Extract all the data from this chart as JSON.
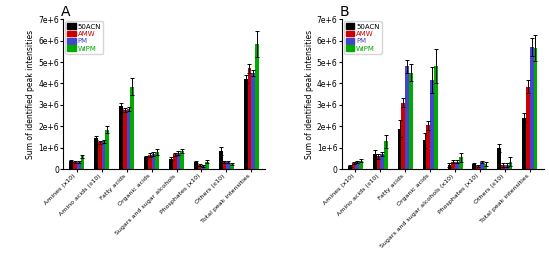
{
  "panel_A": {
    "title": "A",
    "categories": [
      "Amines (x10)",
      "Amino acids (x10)",
      "Fatty acids",
      "Organic acids",
      "Sugars and sugar alcohols",
      "Phosphates (x10)",
      "Others (x10)",
      "Total peak intensities"
    ],
    "series": {
      "50ACN": [
        400000,
        1450000,
        2950000,
        550000,
        500000,
        350000,
        850000,
        4200000
      ],
      "AMW": [
        350000,
        1250000,
        2750000,
        650000,
        700000,
        200000,
        350000,
        4700000
      ],
      "PM": [
        350000,
        1300000,
        2800000,
        700000,
        750000,
        150000,
        350000,
        4500000
      ],
      "WiPM": [
        600000,
        1850000,
        3850000,
        800000,
        850000,
        350000,
        250000,
        5850000
      ]
    },
    "errors": {
      "50ACN": [
        40000,
        100000,
        150000,
        80000,
        80000,
        50000,
        200000,
        200000
      ],
      "AMW": [
        40000,
        80000,
        100000,
        100000,
        80000,
        50000,
        50000,
        200000
      ],
      "PM": [
        40000,
        80000,
        100000,
        100000,
        80000,
        50000,
        50000,
        150000
      ],
      "WiPM": [
        80000,
        150000,
        400000,
        150000,
        100000,
        80000,
        50000,
        600000
      ]
    }
  },
  "panel_B": {
    "title": "B",
    "categories": [
      "Amines (x10)",
      "Amino acids (x10)",
      "Fatty acids",
      "Organic acids",
      "Sugars and sugar alcohols (x10)",
      "Phosphates (x10)",
      "Others (x10)",
      "Total peak intensities"
    ],
    "series": {
      "50ACN": [
        150000,
        700000,
        1900000,
        1350000,
        200000,
        250000,
        1000000,
        2400000
      ],
      "AMW": [
        300000,
        600000,
        3100000,
        2050000,
        350000,
        150000,
        200000,
        3850000
      ],
      "PM": [
        350000,
        700000,
        4800000,
        4150000,
        350000,
        350000,
        200000,
        5700000
      ],
      "WiPM": [
        400000,
        1300000,
        4500000,
        4800000,
        550000,
        250000,
        350000,
        5650000
      ]
    },
    "errors": {
      "50ACN": [
        50000,
        200000,
        400000,
        350000,
        80000,
        50000,
        200000,
        200000
      ],
      "AMW": [
        50000,
        100000,
        200000,
        200000,
        80000,
        50000,
        100000,
        300000
      ],
      "PM": [
        50000,
        100000,
        300000,
        600000,
        80000,
        50000,
        100000,
        400000
      ],
      "WiPM": [
        80000,
        300000,
        400000,
        800000,
        200000,
        80000,
        200000,
        600000
      ]
    }
  },
  "colors": {
    "50ACN": "#000000",
    "AMW": "#cc0000",
    "PM": "#4444cc",
    "WiPM": "#00aa00"
  },
  "ylabel": "Sum of identified peak intensities",
  "ylim": [
    0,
    7000000
  ],
  "yticks": [
    0,
    1000000,
    2000000,
    3000000,
    4000000,
    5000000,
    6000000,
    7000000
  ],
  "ytick_labels": [
    "0",
    "1e+6",
    "2e+6",
    "3e+6",
    "4e+6",
    "5e+6",
    "6e+6",
    "7e+6"
  ],
  "series_keys": [
    "50ACN",
    "AMW",
    "PM",
    "WiPM"
  ],
  "bar_width": 0.15,
  "figsize": [
    5.49,
    2.73
  ],
  "dpi": 100
}
